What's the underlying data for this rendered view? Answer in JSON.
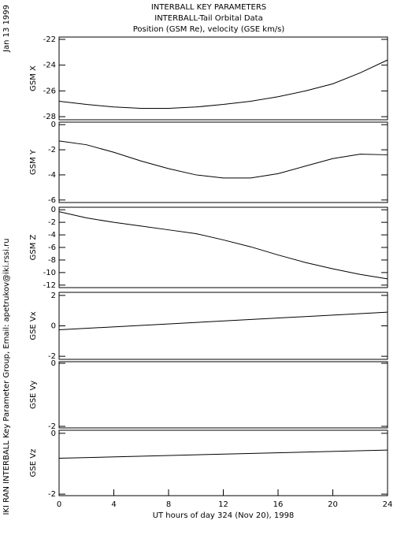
{
  "header": {
    "title_lines": [
      "INTERBALL KEY PARAMETERS",
      "INTERBALL-Tail Orbital Data",
      "Position (GSM Re), velocity (GSE km/s)"
    ],
    "date": "Jan 13 1999",
    "credit": "IKI RAN INTERBALL Key Parameter Group, Email: apetrukov@iki.rssi.ru"
  },
  "chart_data": [
    {
      "type": "line",
      "ylabel": "GSM X",
      "xlim": [
        0,
        24
      ],
      "ylim": [
        -28.24,
        -21.82
      ],
      "yticks": [
        -28,
        -26,
        -24,
        -22
      ],
      "x": [
        0,
        2,
        4,
        6,
        8,
        10,
        12,
        14,
        16,
        18,
        20,
        22,
        24
      ],
      "values": [
        -26.8,
        -27.05,
        -27.25,
        -27.35,
        -27.35,
        -27.25,
        -27.05,
        -26.8,
        -26.45,
        -26.0,
        -25.45,
        -24.6,
        -23.6
      ]
    },
    {
      "type": "line",
      "ylabel": "GSM Y",
      "xlim": [
        0,
        24
      ],
      "ylim": [
        -6.2,
        0.2
      ],
      "yticks": [
        -6,
        -4,
        -2,
        0
      ],
      "x": [
        0,
        2,
        4,
        6,
        8,
        10,
        12,
        14,
        16,
        18,
        20,
        22,
        24
      ],
      "values": [
        -1.3,
        -1.6,
        -2.2,
        -2.9,
        -3.5,
        -4.0,
        -4.25,
        -4.25,
        -3.9,
        -3.3,
        -2.7,
        -2.35,
        -2.4
      ]
    },
    {
      "type": "line",
      "ylabel": "GSM Z",
      "xlim": [
        0,
        24
      ],
      "ylim": [
        -12.4,
        0.4
      ],
      "yticks": [
        -12,
        -10,
        -8,
        -6,
        -4,
        -2,
        0
      ],
      "x": [
        0,
        2,
        4,
        6,
        8,
        10,
        12,
        14,
        16,
        18,
        20,
        22,
        24
      ],
      "values": [
        -0.3,
        -1.3,
        -2.0,
        -2.6,
        -3.2,
        -3.8,
        -4.8,
        -5.9,
        -7.2,
        -8.4,
        -9.4,
        -10.3,
        -11.0
      ]
    },
    {
      "type": "line",
      "ylabel": "GSE Vx",
      "xlim": [
        0,
        24
      ],
      "ylim": [
        -2.2,
        2.2
      ],
      "yticks": [
        -2,
        0,
        2
      ],
      "x": [
        0,
        24
      ],
      "values": [
        -0.26,
        0.9
      ]
    },
    {
      "type": "line",
      "ylabel": "GSE Vy",
      "xlim": [
        0,
        24
      ],
      "ylim": [
        -2.05,
        0.05
      ],
      "yticks": [
        -2,
        0
      ]
    },
    {
      "type": "line",
      "ylabel": "GSE Vz",
      "xlim": [
        0,
        24
      ],
      "ylim": [
        -2.05,
        0.1
      ],
      "yticks": [
        -2,
        0
      ],
      "x": [
        0,
        24
      ],
      "values": [
        -0.82,
        -0.55
      ],
      "xticks": [
        0,
        4,
        8,
        12,
        16,
        20,
        24
      ],
      "xlabel": "UT hours of day 324 (Nov 20), 1998"
    }
  ]
}
